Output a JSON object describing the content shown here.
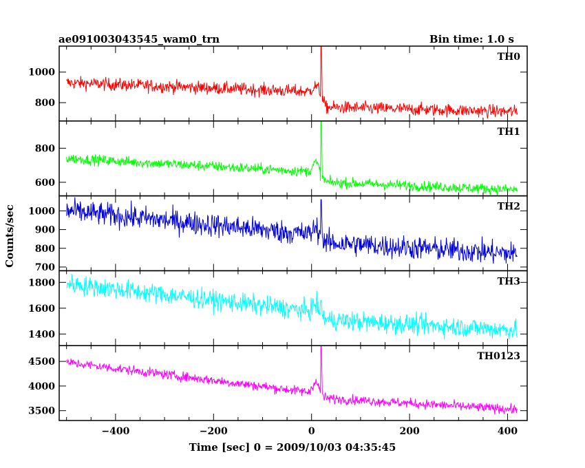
{
  "header": {
    "title": "ae091003043545_wam0_trn",
    "bin_time": "Bin time: 1.0 s"
  },
  "axes": {
    "xlabel": "Time [sec] 0 = 2009/10/03 04:35:45",
    "ylabel": "Counts/sec"
  },
  "chart_data": {
    "type": "line",
    "xlim": [
      -515,
      440
    ],
    "x_ticks": [
      -400,
      -200,
      0,
      200,
      400
    ],
    "x_tick_labels": [
      "−400",
      "−200",
      "0",
      "200",
      "400"
    ],
    "x_range": [
      -500,
      420
    ],
    "bin_time_s": 1.0,
    "grid": false,
    "panels": [
      {
        "name": "TH0",
        "color": "#ff0000",
        "ylim": [
          680,
          1170
        ],
        "yticks": [
          800,
          1000
        ],
        "start": 930,
        "pre_peak": 870,
        "post": 770,
        "end": 740,
        "noise": 30,
        "bump": 40,
        "spike": 1170
      },
      {
        "name": "TH1",
        "color": "#00ff00",
        "ylim": [
          520,
          960
        ],
        "yticks": [
          600,
          800
        ],
        "start": 740,
        "pre_peak": 660,
        "post": 600,
        "end": 555,
        "noise": 22,
        "bump": 60,
        "spike": 960
      },
      {
        "name": "TH2",
        "color": "#0000dd",
        "ylim": [
          680,
          1080
        ],
        "yticks": [
          700,
          800,
          900,
          1000
        ],
        "start": 1000,
        "pre_peak": 870,
        "post": 830,
        "end": 770,
        "noise": 45,
        "bump": 40,
        "spike": 1060
      },
      {
        "name": "TH3",
        "color": "#00ffff",
        "ylim": [
          1310,
          1890
        ],
        "yticks": [
          1400,
          1600,
          1800
        ],
        "start": 1790,
        "pre_peak": 1570,
        "post": 1510,
        "end": 1430,
        "noise": 55,
        "bump": 60,
        "spike": 1660
      },
      {
        "name": "TH0123",
        "color": "#ff00ff",
        "ylim": [
          3300,
          4820
        ],
        "yticks": [
          3500,
          4000,
          4500
        ],
        "start": 4480,
        "pre_peak": 3850,
        "post": 3750,
        "end": 3520,
        "noise": 70,
        "bump": 250,
        "spike": 4820
      }
    ]
  }
}
